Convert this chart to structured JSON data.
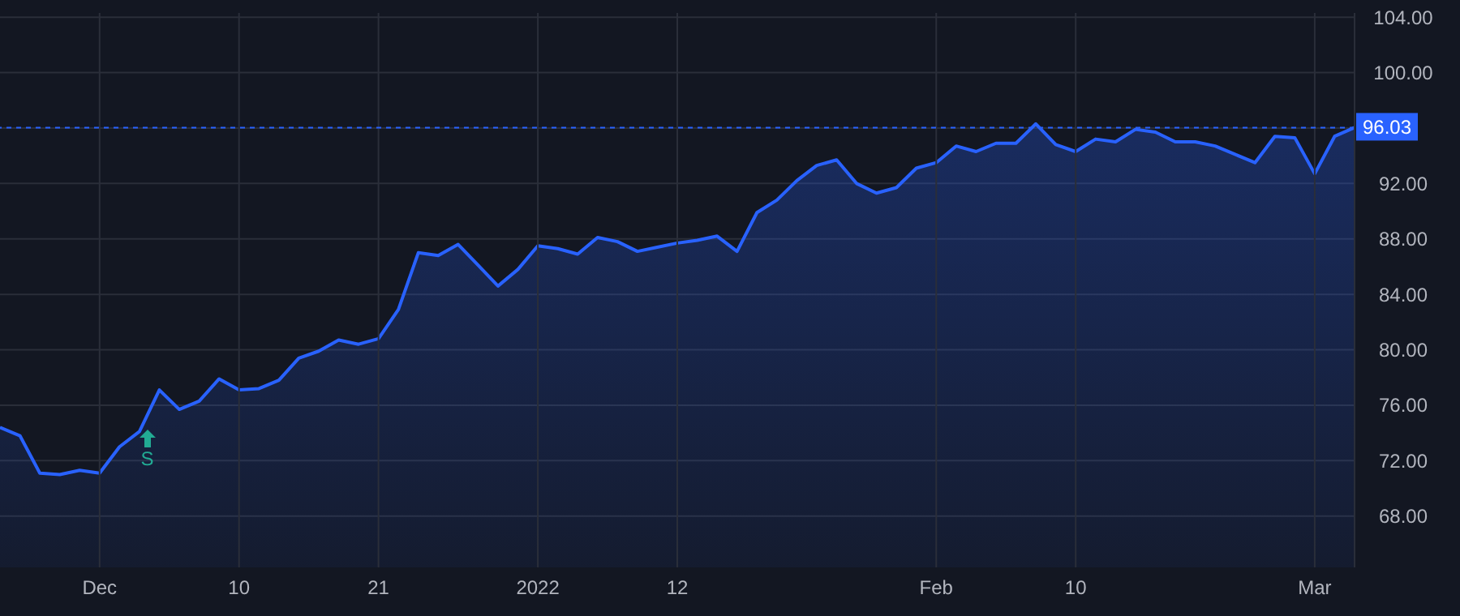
{
  "chart_data": {
    "type": "area",
    "categories": [
      null,
      null,
      null,
      null,
      null,
      "Dec",
      null,
      null,
      null,
      null,
      null,
      null,
      "10",
      null,
      null,
      null,
      null,
      null,
      null,
      "21",
      null,
      null,
      null,
      null,
      null,
      null,
      null,
      "2022",
      null,
      null,
      null,
      null,
      null,
      null,
      "12",
      null,
      null,
      null,
      null,
      null,
      null,
      null,
      null,
      null,
      null,
      null,
      null,
      "Feb",
      null,
      null,
      null,
      null,
      null,
      null,
      "10",
      null,
      null,
      null,
      null,
      null,
      null,
      null,
      null,
      null,
      null,
      null,
      "Mar",
      null,
      null
    ],
    "series": [
      {
        "color": "#2962ff",
        "values": [
          74.4,
          73.8,
          71.1,
          71.0,
          71.3,
          71.1,
          73.0,
          74.1,
          77.1,
          75.7,
          76.3,
          77.9,
          77.1,
          77.2,
          77.8,
          79.4,
          79.9,
          80.7,
          80.4,
          80.8,
          82.9,
          87.0,
          86.8,
          87.6,
          86.1,
          84.6,
          85.8,
          87.5,
          87.3,
          86.9,
          88.1,
          87.8,
          87.1,
          87.4,
          87.7,
          87.9,
          88.2,
          87.1,
          89.9,
          90.8,
          92.2,
          93.3,
          93.7,
          92.0,
          91.3,
          91.7,
          93.1,
          93.5,
          94.7,
          94.3,
          94.9,
          94.9,
          96.3,
          94.8,
          94.3,
          95.2,
          95.0,
          95.9,
          95.7,
          95.0,
          95.0,
          94.7,
          94.1,
          93.5,
          95.4,
          95.3,
          92.7,
          95.4,
          96.03
        ]
      }
    ],
    "ylim": [
      64.3,
      104.3
    ],
    "yticks": [
      {
        "value": 68,
        "label": "68.00"
      },
      {
        "value": 72,
        "label": "72.00"
      },
      {
        "value": 76,
        "label": "76.00"
      },
      {
        "value": 80,
        "label": "80.00"
      },
      {
        "value": 84,
        "label": "84.00"
      },
      {
        "value": 88,
        "label": "88.00"
      },
      {
        "value": 92,
        "label": "92.00"
      },
      {
        "value": 96,
        "label": null
      },
      {
        "value": 100,
        "label": "100.00"
      },
      {
        "value": 104,
        "label": "104.00"
      }
    ],
    "ref_lines": [
      {
        "axis": "y",
        "value": 96.03,
        "label": "96.03",
        "color": "#2962ff",
        "line_style": "dashed"
      }
    ],
    "annotations": [
      "S"
    ],
    "grid": true,
    "marker": "none",
    "line_style": "solid"
  }
}
